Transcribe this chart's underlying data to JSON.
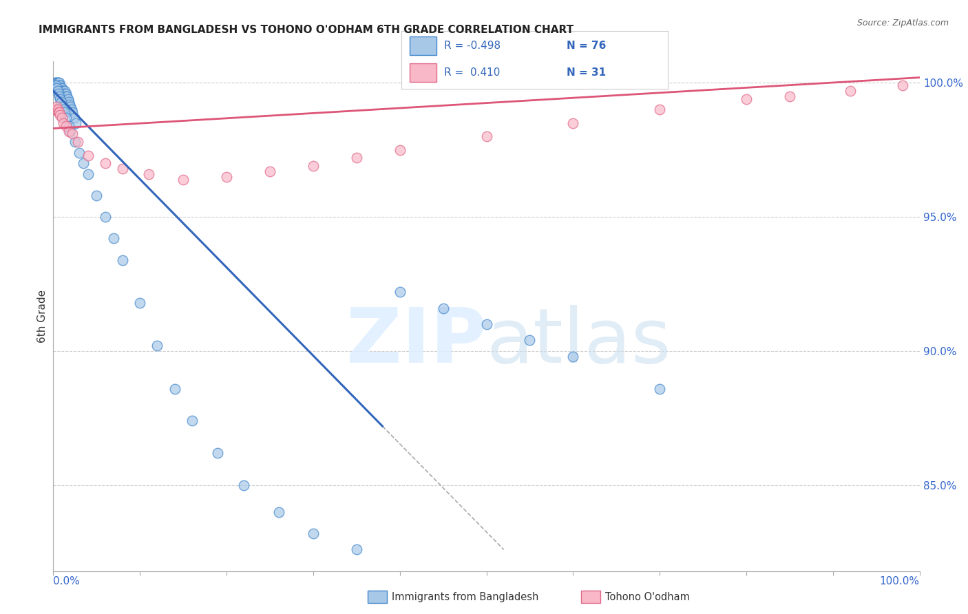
{
  "title": "IMMIGRANTS FROM BANGLADESH VS TOHONO O'ODHAM 6TH GRADE CORRELATION CHART",
  "source": "Source: ZipAtlas.com",
  "ylabel": "6th Grade",
  "yaxis_labels": [
    "100.0%",
    "95.0%",
    "90.0%",
    "85.0%"
  ],
  "yaxis_values": [
    1.0,
    0.95,
    0.9,
    0.85
  ],
  "blue_color": "#a8c8e8",
  "blue_edge_color": "#4488cc",
  "pink_color": "#f8b8c8",
  "pink_edge_color": "#e06888",
  "blue_line_color": "#3366bb",
  "pink_line_color": "#dd5577",
  "legend_r1": "R = -0.498",
  "legend_n1": "N = 76",
  "legend_r2": "R =  0.410",
  "legend_n2": "N = 31",
  "legend_text_color": "#3366bb",
  "xlim": [
    0.0,
    1.0
  ],
  "ylim": [
    0.818,
    1.008
  ],
  "blue_scatter_x": [
    0.002,
    0.003,
    0.003,
    0.004,
    0.004,
    0.005,
    0.005,
    0.005,
    0.006,
    0.006,
    0.006,
    0.007,
    0.007,
    0.007,
    0.008,
    0.008,
    0.008,
    0.009,
    0.009,
    0.01,
    0.01,
    0.01,
    0.011,
    0.011,
    0.012,
    0.012,
    0.013,
    0.013,
    0.014,
    0.015,
    0.015,
    0.016,
    0.017,
    0.018,
    0.019,
    0.02,
    0.021,
    0.022,
    0.024,
    0.026,
    0.003,
    0.004,
    0.005,
    0.006,
    0.007,
    0.008,
    0.009,
    0.01,
    0.012,
    0.013,
    0.015,
    0.018,
    0.02,
    0.025,
    0.03,
    0.035,
    0.04,
    0.05,
    0.06,
    0.07,
    0.08,
    0.1,
    0.12,
    0.14,
    0.16,
    0.19,
    0.22,
    0.26,
    0.3,
    0.35,
    0.4,
    0.45,
    0.5,
    0.55,
    0.6,
    0.7
  ],
  "blue_scatter_y": [
    1.0,
    1.0,
    0.999,
    1.0,
    0.999,
    1.0,
    0.999,
    0.998,
    1.0,
    0.999,
    0.998,
    1.0,
    0.999,
    0.998,
    0.999,
    0.998,
    0.997,
    0.998,
    0.997,
    0.998,
    0.997,
    0.996,
    0.997,
    0.996,
    0.997,
    0.996,
    0.997,
    0.996,
    0.995,
    0.996,
    0.995,
    0.995,
    0.994,
    0.993,
    0.992,
    0.991,
    0.99,
    0.989,
    0.987,
    0.985,
    0.999,
    0.998,
    0.997,
    0.996,
    0.995,
    0.994,
    0.993,
    0.991,
    0.99,
    0.989,
    0.987,
    0.984,
    0.982,
    0.978,
    0.974,
    0.97,
    0.966,
    0.958,
    0.95,
    0.942,
    0.934,
    0.918,
    0.902,
    0.886,
    0.874,
    0.862,
    0.85,
    0.84,
    0.832,
    0.826,
    0.922,
    0.916,
    0.91,
    0.904,
    0.898,
    0.886
  ],
  "pink_scatter_x": [
    0.001,
    0.002,
    0.003,
    0.004,
    0.005,
    0.006,
    0.007,
    0.008,
    0.01,
    0.012,
    0.015,
    0.018,
    0.022,
    0.028,
    0.04,
    0.06,
    0.08,
    0.11,
    0.15,
    0.2,
    0.25,
    0.3,
    0.35,
    0.4,
    0.5,
    0.6,
    0.7,
    0.8,
    0.85,
    0.92,
    0.98
  ],
  "pink_scatter_y": [
    0.99,
    0.99,
    0.99,
    0.991,
    0.99,
    0.989,
    0.989,
    0.988,
    0.987,
    0.985,
    0.984,
    0.982,
    0.981,
    0.978,
    0.973,
    0.97,
    0.968,
    0.966,
    0.964,
    0.965,
    0.967,
    0.969,
    0.972,
    0.975,
    0.98,
    0.985,
    0.99,
    0.994,
    0.995,
    0.997,
    0.999
  ],
  "blue_line_x0": 0.0,
  "blue_line_x1": 0.38,
  "blue_line_y0": 0.997,
  "blue_line_y1": 0.872,
  "pink_line_x0": 0.0,
  "pink_line_x1": 1.0,
  "pink_line_y0": 0.983,
  "pink_line_y1": 1.002,
  "dash_line_x0": 0.38,
  "dash_line_x1": 0.52,
  "dash_line_y0": 0.872,
  "dash_line_y1": 0.826,
  "grid_color": "#cccccc",
  "xticks": [
    0.0,
    0.1,
    0.2,
    0.3,
    0.4,
    0.5,
    0.6,
    0.7,
    0.8,
    0.9,
    1.0
  ]
}
